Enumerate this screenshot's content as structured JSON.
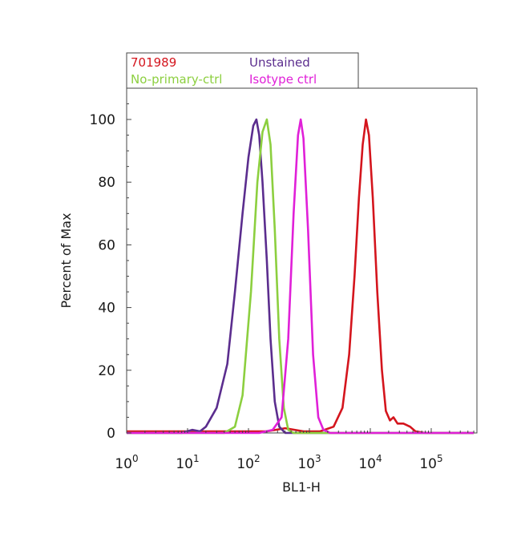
{
  "chart_data": {
    "type": "line",
    "xlabel": "BL1-H",
    "ylabel": "Percent of Max",
    "xscale": "log",
    "xlim": [
      1,
      500000
    ],
    "ylim": [
      0,
      110
    ],
    "grid": false,
    "legend_position": "top-left, outside plot",
    "x_tick_labels": [
      {
        "base": "10",
        "exp": "0"
      },
      {
        "base": "10",
        "exp": "1"
      },
      {
        "base": "10",
        "exp": "2"
      },
      {
        "base": "10",
        "exp": "3"
      },
      {
        "base": "10",
        "exp": "4"
      },
      {
        "base": "10",
        "exp": "5"
      }
    ],
    "y_tick_labels": [
      "0",
      "20",
      "40",
      "60",
      "80",
      "100"
    ],
    "series": [
      {
        "name": "Unstained",
        "color": "#5b2d8e",
        "points": [
          [
            1,
            0
          ],
          [
            8,
            0
          ],
          [
            12,
            1
          ],
          [
            16,
            0.5
          ],
          [
            20,
            2
          ],
          [
            30,
            8
          ],
          [
            45,
            22
          ],
          [
            60,
            45
          ],
          [
            80,
            70
          ],
          [
            100,
            88
          ],
          [
            120,
            98
          ],
          [
            135,
            100
          ],
          [
            150,
            95
          ],
          [
            170,
            80
          ],
          [
            200,
            55
          ],
          [
            230,
            30
          ],
          [
            270,
            10
          ],
          [
            320,
            2
          ],
          [
            400,
            0
          ],
          [
            500000,
            0
          ]
        ]
      },
      {
        "name": "No-primary-ctrl",
        "color": "#8ccf3f",
        "points": [
          [
            1,
            0
          ],
          [
            40,
            0
          ],
          [
            60,
            2
          ],
          [
            80,
            12
          ],
          [
            110,
            45
          ],
          [
            140,
            80
          ],
          [
            170,
            96
          ],
          [
            200,
            100
          ],
          [
            230,
            92
          ],
          [
            270,
            65
          ],
          [
            320,
            30
          ],
          [
            380,
            8
          ],
          [
            450,
            1
          ],
          [
            550,
            0
          ],
          [
            500000,
            0
          ]
        ]
      },
      {
        "name": "Isotype ctrl",
        "color": "#e020d8",
        "points": [
          [
            1,
            0
          ],
          [
            150,
            0
          ],
          [
            250,
            1
          ],
          [
            350,
            5
          ],
          [
            450,
            30
          ],
          [
            550,
            70
          ],
          [
            650,
            95
          ],
          [
            720,
            100
          ],
          [
            800,
            94
          ],
          [
            950,
            65
          ],
          [
            1150,
            25
          ],
          [
            1400,
            5
          ],
          [
            1700,
            1
          ],
          [
            2200,
            0
          ],
          [
            500000,
            0
          ]
        ]
      },
      {
        "name": "701989",
        "color": "#d4151d",
        "points": [
          [
            1,
            0.5
          ],
          [
            200,
            0.5
          ],
          [
            400,
            1.5
          ],
          [
            800,
            0.5
          ],
          [
            1500,
            0.5
          ],
          [
            2500,
            2
          ],
          [
            3500,
            8
          ],
          [
            4500,
            25
          ],
          [
            5500,
            50
          ],
          [
            6500,
            75
          ],
          [
            7500,
            92
          ],
          [
            8500,
            100
          ],
          [
            9500,
            95
          ],
          [
            11000,
            75
          ],
          [
            13000,
            45
          ],
          [
            15500,
            20
          ],
          [
            18000,
            7
          ],
          [
            21000,
            4
          ],
          [
            24000,
            5
          ],
          [
            28000,
            3
          ],
          [
            35000,
            3
          ],
          [
            45000,
            2
          ],
          [
            55000,
            0.5
          ],
          [
            80000,
            0
          ],
          [
            500000,
            0
          ]
        ]
      }
    ]
  }
}
